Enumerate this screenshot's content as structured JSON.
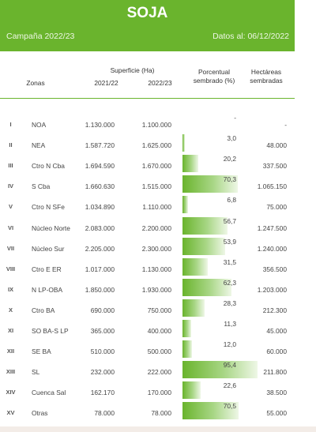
{
  "header": {
    "title": "SOJA",
    "campaign": "Campaña 2022/23",
    "date": "Datos al: 06/12/2022"
  },
  "columns": {
    "zonas": "Zonas",
    "superficie": "Superficie (Ha)",
    "y1": "2021/22",
    "y2": "2022/23",
    "pct_line1": "Porcentual",
    "pct_line2": "sembrado (%)",
    "ha_line1": "Hectáreas",
    "ha_line2": "sembradas"
  },
  "rows": [
    {
      "num": "I",
      "zona": "NOA",
      "s1": "1.130.000",
      "s2": "1.100.000",
      "pct": "-",
      "pct_value": 0,
      "ha": "-"
    },
    {
      "num": "II",
      "zona": "NEA",
      "s1": "1.587.720",
      "s2": "1.625.000",
      "pct": "3,0",
      "pct_value": 3.0,
      "ha": "48.000"
    },
    {
      "num": "III",
      "zona": "Ctro N Cba",
      "s1": "1.694.590",
      "s2": "1.670.000",
      "pct": "20,2",
      "pct_value": 20.2,
      "ha": "337.500"
    },
    {
      "num": "IV",
      "zona": "S Cba",
      "s1": "1.660.630",
      "s2": "1.515.000",
      "pct": "70,3",
      "pct_value": 70.3,
      "ha": "1.065.150"
    },
    {
      "num": "V",
      "zona": "Ctro N SFe",
      "s1": "1.034.890",
      "s2": "1.110.000",
      "pct": "6,8",
      "pct_value": 6.8,
      "ha": "75.000"
    },
    {
      "num": "VI",
      "zona": "Núcleo Norte",
      "s1": "2.083.000",
      "s2": "2.200.000",
      "pct": "56,7",
      "pct_value": 56.7,
      "ha": "1.247.500"
    },
    {
      "num": "VII",
      "zona": "Núcleo Sur",
      "s1": "2.205.000",
      "s2": "2.300.000",
      "pct": "53,9",
      "pct_value": 53.9,
      "ha": "1.240.000"
    },
    {
      "num": "VIII",
      "zona": "Ctro E ER",
      "s1": "1.017.000",
      "s2": "1.130.000",
      "pct": "31,5",
      "pct_value": 31.5,
      "ha": "356.500"
    },
    {
      "num": "IX",
      "zona": "N LP-OBA",
      "s1": "1.850.000",
      "s2": "1.930.000",
      "pct": "62,3",
      "pct_value": 62.3,
      "ha": "1.203.000"
    },
    {
      "num": "X",
      "zona": "Ctro BA",
      "s1": "690.000",
      "s2": "750.000",
      "pct": "28,3",
      "pct_value": 28.3,
      "ha": "212.300"
    },
    {
      "num": "XI",
      "zona": "SO BA-S LP",
      "s1": "365.000",
      "s2": "400.000",
      "pct": "11,3",
      "pct_value": 11.3,
      "ha": "45.000"
    },
    {
      "num": "XII",
      "zona": "SE BA",
      "s1": "510.000",
      "s2": "500.000",
      "pct": "12,0",
      "pct_value": 12.0,
      "ha": "60.000"
    },
    {
      "num": "XIII",
      "zona": "SL",
      "s1": "232.000",
      "s2": "222.000",
      "pct": "95,4",
      "pct_value": 95.4,
      "ha": "211.800"
    },
    {
      "num": "XIV",
      "zona": "Cuenca Sal",
      "s1": "162.170",
      "s2": "170.000",
      "pct": "22,6",
      "pct_value": 22.6,
      "ha": "38.500"
    },
    {
      "num": "XV",
      "zona": "Otras",
      "s1": "78.000",
      "s2": "78.000",
      "pct": "70,5",
      "pct_value": 70.5,
      "ha": "55.000"
    }
  ],
  "colors": {
    "brand_green": "#6ab42d",
    "bar_light": "#eef7e6"
  }
}
